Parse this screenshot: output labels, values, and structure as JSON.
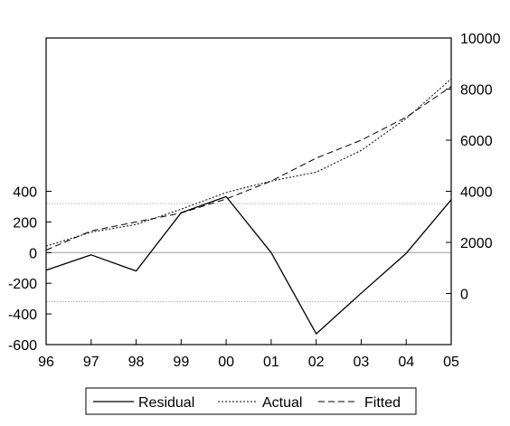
{
  "chart_data": {
    "type": "line",
    "categories": [
      "96",
      "97",
      "98",
      "99",
      "00",
      "01",
      "02",
      "03",
      "04",
      "05"
    ],
    "series": [
      {
        "name": "Residual",
        "axis": "left",
        "style": "solid",
        "values": [
          -115,
          -15,
          -120,
          260,
          365,
          0,
          -530,
          -265,
          -5,
          345
        ]
      },
      {
        "name": "Actual",
        "axis": "right",
        "style": "dotted",
        "values": [
          1850,
          2400,
          2700,
          3300,
          3950,
          4400,
          4750,
          5600,
          6850,
          8400
        ]
      },
      {
        "name": "Fitted",
        "axis": "right",
        "style": "dashed",
        "values": [
          1700,
          2450,
          2800,
          3150,
          3700,
          4400,
          5300,
          6000,
          6900,
          8100
        ]
      }
    ],
    "left_axis": {
      "ylim": [
        -600,
        1400
      ],
      "ticks": [
        "400",
        "200",
        "0",
        "-200",
        "-400",
        "-600"
      ]
    },
    "right_axis": {
      "ylim": [
        -2000,
        10000
      ],
      "ticks": [
        "10000",
        "8000",
        "6000",
        "4000",
        "2000",
        "0"
      ]
    },
    "x_ticks": [
      "96",
      "97",
      "98",
      "99",
      "00",
      "01",
      "02",
      "03",
      "04",
      "05"
    ],
    "reference_lines_left": [
      0,
      320,
      -320
    ],
    "legend": {
      "position": "bottom-center",
      "items": [
        "Residual",
        "Actual",
        "Fitted"
      ]
    },
    "grid": false
  }
}
